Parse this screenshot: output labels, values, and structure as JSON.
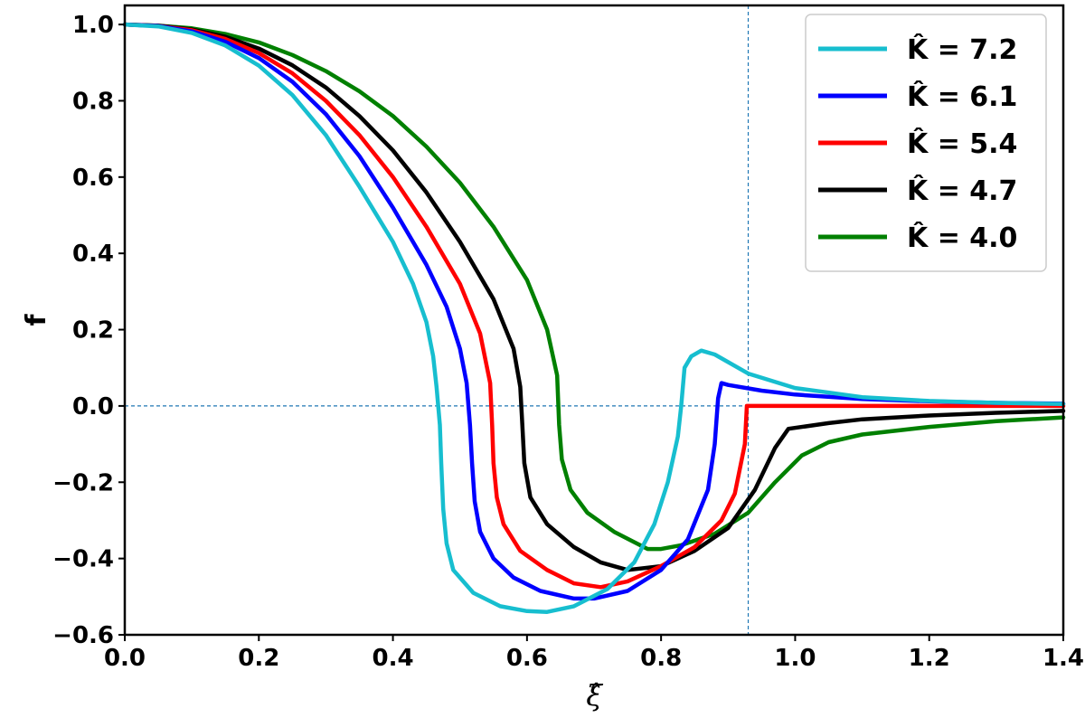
{
  "chart_data": {
    "type": "line",
    "title": "",
    "xlabel": "ξ̂",
    "ylabel": "f",
    "xlim": [
      0.0,
      1.4
    ],
    "ylim": [
      -0.6,
      1.05
    ],
    "xticks": [
      "0.0",
      "0.2",
      "0.4",
      "0.6",
      "0.8",
      "1.0",
      "1.2",
      "1.4"
    ],
    "yticks": [
      "−0.6",
      "−0.4",
      "−0.2",
      "0.0",
      "0.2",
      "0.4",
      "0.6",
      "0.8",
      "1.0"
    ],
    "reference_lines": {
      "horizontal_y": 0.0,
      "vertical_x": 0.93
    },
    "legend_position": "top-right",
    "grid": false,
    "series": [
      {
        "name": "K̂ = 7.2",
        "color": "#17becf",
        "points": [
          [
            0.0,
            1.0
          ],
          [
            0.05,
            0.995
          ],
          [
            0.1,
            0.978
          ],
          [
            0.15,
            0.945
          ],
          [
            0.2,
            0.892
          ],
          [
            0.25,
            0.815
          ],
          [
            0.3,
            0.71
          ],
          [
            0.35,
            0.575
          ],
          [
            0.4,
            0.43
          ],
          [
            0.43,
            0.32
          ],
          [
            0.45,
            0.22
          ],
          [
            0.46,
            0.13
          ],
          [
            0.465,
            0.05
          ],
          [
            0.47,
            -0.05
          ],
          [
            0.472,
            -0.15
          ],
          [
            0.475,
            -0.27
          ],
          [
            0.48,
            -0.36
          ],
          [
            0.49,
            -0.43
          ],
          [
            0.52,
            -0.49
          ],
          [
            0.56,
            -0.525
          ],
          [
            0.6,
            -0.538
          ],
          [
            0.63,
            -0.54
          ],
          [
            0.67,
            -0.525
          ],
          [
            0.72,
            -0.48
          ],
          [
            0.76,
            -0.41
          ],
          [
            0.79,
            -0.31
          ],
          [
            0.81,
            -0.2
          ],
          [
            0.825,
            -0.08
          ],
          [
            0.83,
            0.0
          ],
          [
            0.835,
            0.1
          ],
          [
            0.845,
            0.13
          ],
          [
            0.86,
            0.145
          ],
          [
            0.88,
            0.135
          ],
          [
            0.93,
            0.085
          ],
          [
            1.0,
            0.047
          ],
          [
            1.1,
            0.023
          ],
          [
            1.2,
            0.013
          ],
          [
            1.3,
            0.008
          ],
          [
            1.4,
            0.005
          ]
        ]
      },
      {
        "name": "K̂ = 6.1",
        "color": "#0000ff",
        "points": [
          [
            0.0,
            1.0
          ],
          [
            0.05,
            0.996
          ],
          [
            0.1,
            0.982
          ],
          [
            0.15,
            0.955
          ],
          [
            0.2,
            0.912
          ],
          [
            0.25,
            0.85
          ],
          [
            0.3,
            0.765
          ],
          [
            0.35,
            0.655
          ],
          [
            0.4,
            0.52
          ],
          [
            0.45,
            0.37
          ],
          [
            0.48,
            0.26
          ],
          [
            0.5,
            0.15
          ],
          [
            0.51,
            0.06
          ],
          [
            0.515,
            -0.05
          ],
          [
            0.518,
            -0.15
          ],
          [
            0.522,
            -0.25
          ],
          [
            0.53,
            -0.33
          ],
          [
            0.55,
            -0.4
          ],
          [
            0.58,
            -0.45
          ],
          [
            0.62,
            -0.485
          ],
          [
            0.67,
            -0.505
          ],
          [
            0.7,
            -0.505
          ],
          [
            0.75,
            -0.485
          ],
          [
            0.8,
            -0.43
          ],
          [
            0.84,
            -0.35
          ],
          [
            0.87,
            -0.22
          ],
          [
            0.88,
            -0.1
          ],
          [
            0.885,
            0.02
          ],
          [
            0.89,
            0.06
          ],
          [
            0.9,
            0.055
          ],
          [
            0.95,
            0.04
          ],
          [
            1.0,
            0.03
          ],
          [
            1.1,
            0.018
          ],
          [
            1.2,
            0.012
          ],
          [
            1.3,
            0.008
          ],
          [
            1.4,
            0.006
          ]
        ]
      },
      {
        "name": "K̂ = 5.4",
        "color": "#ff0000",
        "points": [
          [
            0.0,
            1.0
          ],
          [
            0.05,
            0.996
          ],
          [
            0.1,
            0.985
          ],
          [
            0.15,
            0.962
          ],
          [
            0.2,
            0.925
          ],
          [
            0.25,
            0.872
          ],
          [
            0.3,
            0.8
          ],
          [
            0.35,
            0.71
          ],
          [
            0.4,
            0.6
          ],
          [
            0.45,
            0.47
          ],
          [
            0.5,
            0.32
          ],
          [
            0.53,
            0.19
          ],
          [
            0.545,
            0.06
          ],
          [
            0.548,
            -0.05
          ],
          [
            0.55,
            -0.15
          ],
          [
            0.555,
            -0.24
          ],
          [
            0.565,
            -0.31
          ],
          [
            0.59,
            -0.38
          ],
          [
            0.63,
            -0.43
          ],
          [
            0.67,
            -0.465
          ],
          [
            0.71,
            -0.475
          ],
          [
            0.75,
            -0.46
          ],
          [
            0.8,
            -0.42
          ],
          [
            0.85,
            -0.37
          ],
          [
            0.89,
            -0.3
          ],
          [
            0.91,
            -0.23
          ],
          [
            0.925,
            -0.1
          ],
          [
            0.928,
            0.0
          ],
          [
            0.93,
            0.0
          ],
          [
            1.0,
            0.0
          ],
          [
            1.1,
            0.0
          ],
          [
            1.2,
            0.0
          ],
          [
            1.3,
            0.0
          ],
          [
            1.4,
            0.0
          ]
        ]
      },
      {
        "name": "K̂ = 4.7",
        "color": "#000000",
        "points": [
          [
            0.0,
            1.0
          ],
          [
            0.05,
            0.997
          ],
          [
            0.1,
            0.987
          ],
          [
            0.15,
            0.968
          ],
          [
            0.2,
            0.937
          ],
          [
            0.25,
            0.893
          ],
          [
            0.3,
            0.835
          ],
          [
            0.35,
            0.76
          ],
          [
            0.4,
            0.67
          ],
          [
            0.45,
            0.56
          ],
          [
            0.5,
            0.43
          ],
          [
            0.55,
            0.28
          ],
          [
            0.58,
            0.15
          ],
          [
            0.59,
            0.05
          ],
          [
            0.593,
            -0.05
          ],
          [
            0.596,
            -0.15
          ],
          [
            0.605,
            -0.24
          ],
          [
            0.63,
            -0.31
          ],
          [
            0.67,
            -0.37
          ],
          [
            0.71,
            -0.41
          ],
          [
            0.75,
            -0.43
          ],
          [
            0.8,
            -0.42
          ],
          [
            0.85,
            -0.38
          ],
          [
            0.9,
            -0.32
          ],
          [
            0.94,
            -0.22
          ],
          [
            0.97,
            -0.11
          ],
          [
            0.99,
            -0.06
          ],
          [
            1.05,
            -0.045
          ],
          [
            1.1,
            -0.035
          ],
          [
            1.2,
            -0.025
          ],
          [
            1.3,
            -0.018
          ],
          [
            1.4,
            -0.013
          ]
        ]
      },
      {
        "name": "K̂ = 4.0",
        "color": "#008000",
        "points": [
          [
            0.0,
            1.0
          ],
          [
            0.05,
            0.997
          ],
          [
            0.1,
            0.99
          ],
          [
            0.15,
            0.975
          ],
          [
            0.2,
            0.953
          ],
          [
            0.25,
            0.92
          ],
          [
            0.3,
            0.878
          ],
          [
            0.35,
            0.825
          ],
          [
            0.4,
            0.76
          ],
          [
            0.45,
            0.68
          ],
          [
            0.5,
            0.585
          ],
          [
            0.55,
            0.47
          ],
          [
            0.6,
            0.33
          ],
          [
            0.63,
            0.2
          ],
          [
            0.645,
            0.08
          ],
          [
            0.648,
            -0.05
          ],
          [
            0.652,
            -0.14
          ],
          [
            0.665,
            -0.22
          ],
          [
            0.69,
            -0.28
          ],
          [
            0.73,
            -0.33
          ],
          [
            0.78,
            -0.375
          ],
          [
            0.8,
            -0.375
          ],
          [
            0.83,
            -0.365
          ],
          [
            0.88,
            -0.335
          ],
          [
            0.93,
            -0.28
          ],
          [
            0.97,
            -0.2
          ],
          [
            1.01,
            -0.13
          ],
          [
            1.05,
            -0.095
          ],
          [
            1.1,
            -0.075
          ],
          [
            1.2,
            -0.055
          ],
          [
            1.3,
            -0.04
          ],
          [
            1.4,
            -0.03
          ]
        ]
      }
    ]
  }
}
